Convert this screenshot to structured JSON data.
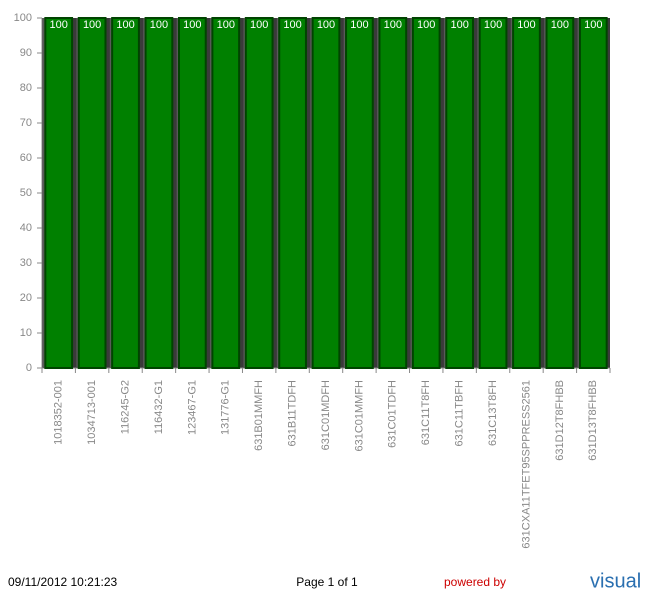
{
  "chart_data": {
    "type": "bar",
    "categories": [
      "1018352-001",
      "1034713-001",
      "116245-G2",
      "116432-G1",
      "123467-G1",
      "131776-G1",
      "631B01MMFH",
      "631B11TDFH",
      "631C01MDFH",
      "631C01MMFH",
      "631C01TDFH",
      "631C11T8FH",
      "631C11TBFH",
      "631C13T8FH",
      "631CXA11TFET95SPPRESS2561",
      "631D12T8FHBB",
      "631D13T8FHBB"
    ],
    "values": [
      100,
      100,
      100,
      100,
      100,
      100,
      100,
      100,
      100,
      100,
      100,
      100,
      100,
      100,
      100,
      100,
      100
    ],
    "color": "#008000",
    "ylim": [
      0,
      100
    ],
    "yticks": [
      0,
      10,
      20,
      30,
      40,
      50,
      60,
      70,
      80,
      90,
      100
    ]
  },
  "footer": {
    "timestamp": "09/11/2012 10:21:23",
    "page": "Page 1 of 1",
    "powered_by": "powered by",
    "logo": "visual"
  }
}
